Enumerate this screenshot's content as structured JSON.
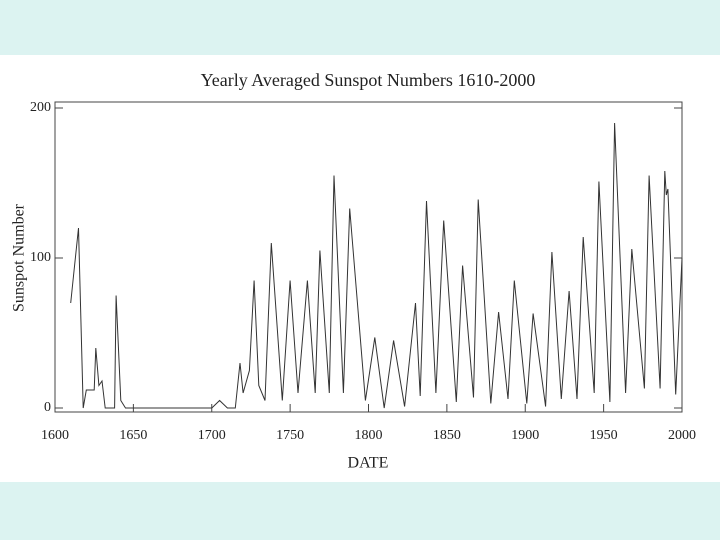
{
  "chart_data": {
    "type": "line",
    "title": "Yearly Averaged Sunspot Numbers 1610-2000",
    "x_label": "DATE",
    "y_label": "Sunspot Number",
    "x": [
      1610,
      1612,
      1615,
      1618,
      1620,
      1625,
      1626,
      1628,
      1630,
      1632,
      1638,
      1639,
      1642,
      1645,
      1660,
      1700,
      1705,
      1710,
      1715,
      1718,
      1720,
      1724,
      1727,
      1730,
      1734,
      1738,
      1745,
      1750,
      1755,
      1761,
      1766,
      1769,
      1775,
      1778,
      1784,
      1788,
      1798,
      1804,
      1810,
      1816,
      1823,
      1830,
      1833,
      1837,
      1843,
      1848,
      1856,
      1860,
      1867,
      1870,
      1878,
      1883,
      1889,
      1893,
      1901,
      1905,
      1913,
      1917,
      1923,
      1928,
      1933,
      1937,
      1944,
      1947,
      1954,
      1957,
      1964,
      1968,
      1976,
      1979,
      1986,
      1989,
      1990,
      1991,
      1996,
      2000
    ],
    "series": [
      {
        "name": "Sunspot Number",
        "color": "#333333",
        "values": [
          70,
          90,
          120,
          0,
          12,
          12,
          40,
          15,
          18,
          0,
          0,
          75,
          5,
          0,
          0,
          0,
          5,
          0,
          0,
          30,
          10,
          25,
          85,
          15,
          5,
          110,
          5,
          85,
          10,
          85,
          10,
          105,
          10,
          155,
          10,
          133,
          5,
          47,
          0,
          45,
          1,
          70,
          8,
          138,
          10,
          125,
          4,
          95,
          7,
          139,
          3,
          64,
          6,
          85,
          3,
          63,
          1,
          104,
          6,
          78,
          6,
          114,
          10,
          151,
          4,
          190,
          10,
          106,
          13,
          155,
          13,
          158,
          142,
          146,
          9,
          100
        ]
      }
    ],
    "xlim": [
      1600,
      2000
    ],
    "ylim": [
      0,
      200
    ],
    "xticks": [
      1600,
      1650,
      1700,
      1750,
      1800,
      1850,
      1900,
      1950,
      2000
    ],
    "yticks": [
      0,
      100,
      200
    ]
  }
}
